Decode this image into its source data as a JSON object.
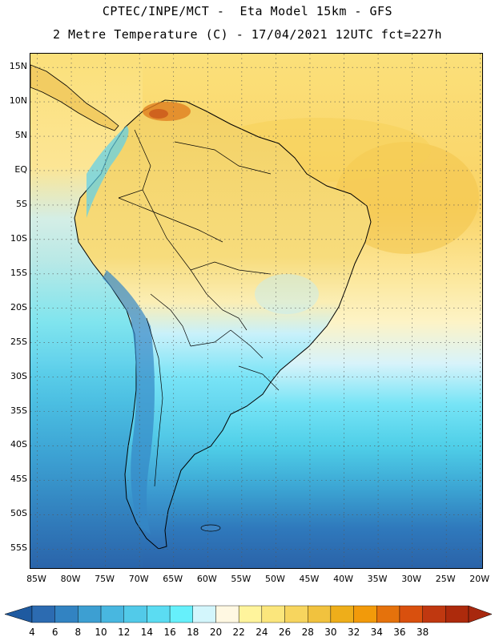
{
  "header": {
    "title_line1": "CPTEC/INPE/MCT -  Eta Model 15km - GFS",
    "title_line2": "2 Metre Temperature (C) - 17/04/2021 12UTC fct=227h"
  },
  "map": {
    "projection": "cylindrical lat/lon",
    "lon_min": -86,
    "lon_max": -19.5,
    "lat_min": -58,
    "lat_max": 17,
    "gridlines": "dotted every 5 degrees",
    "lat_labels": [
      "15N",
      "10N",
      "5N",
      "EQ",
      "5S",
      "10S",
      "15S",
      "20S",
      "25S",
      "30S",
      "35S",
      "40S",
      "45S",
      "50S",
      "55S"
    ],
    "lat_values": [
      15,
      10,
      5,
      0,
      -5,
      -10,
      -15,
      -20,
      -25,
      -30,
      -35,
      -40,
      -45,
      -50,
      -55
    ],
    "lon_labels": [
      "85W",
      "80W",
      "75W",
      "70W",
      "65W",
      "60W",
      "55W",
      "50W",
      "45W",
      "40W",
      "35W",
      "30W",
      "25W",
      "20W"
    ],
    "lon_values": [
      -85,
      -80,
      -75,
      -70,
      -65,
      -60,
      -55,
      -50,
      -45,
      -40,
      -35,
      -30,
      -25,
      -20
    ]
  },
  "legend": {
    "unit": "C",
    "labels": [
      "4",
      "6",
      "8",
      "10",
      "12",
      "14",
      "16",
      "18",
      "20",
      "22",
      "24",
      "26",
      "28",
      "30",
      "32",
      "34",
      "36",
      "38"
    ],
    "colors": [
      "#2c6bb1",
      "#3283c2",
      "#3d9fd2",
      "#48b7e0",
      "#52cae9",
      "#5bdcf2",
      "#66f0fb",
      "#d3f6fc",
      "#fff8e2",
      "#fff49c",
      "#fbe67c",
      "#f7d55e",
      "#f1c23e",
      "#eeae1a",
      "#f29a0a",
      "#e5720c",
      "#d9500e",
      "#c03810",
      "#ad2a0c"
    ],
    "arrow_low": "#1e5aa0",
    "arrow_high": "#a8280e"
  }
}
